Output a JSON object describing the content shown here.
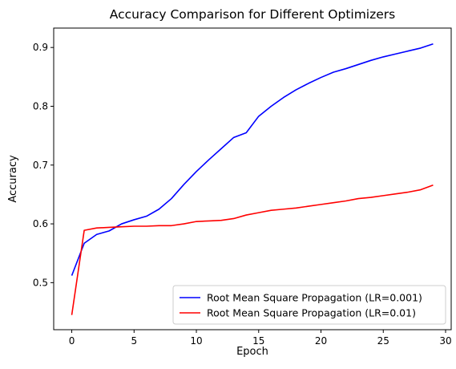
{
  "chart_data": {
    "type": "line",
    "title": "Accuracy Comparison for Different Optimizers",
    "xlabel": "Epoch",
    "ylabel": "Accuracy",
    "xlim": [
      -1.45,
      30.45
    ],
    "ylim": [
      0.42,
      0.933
    ],
    "xticks": [
      0,
      5,
      10,
      15,
      20,
      25,
      30
    ],
    "yticks": [
      0.5,
      0.6,
      0.7,
      0.8,
      0.9
    ],
    "xtick_labels": [
      "0",
      "5",
      "10",
      "15",
      "20",
      "25",
      "30"
    ],
    "ytick_labels": [
      "0.5",
      "0.6",
      "0.7",
      "0.8",
      "0.9"
    ],
    "grid": false,
    "legend_position": "lower right",
    "x": [
      0,
      1,
      2,
      3,
      4,
      5,
      6,
      7,
      8,
      9,
      10,
      11,
      12,
      13,
      14,
      15,
      16,
      17,
      18,
      19,
      20,
      21,
      22,
      23,
      24,
      25,
      26,
      27,
      28,
      29
    ],
    "series": [
      {
        "name": "Root Mean Square Propagation (LR=0.001)",
        "color": "#0000ff",
        "values": [
          0.512,
          0.567,
          0.582,
          0.588,
          0.6,
          0.607,
          0.613,
          0.625,
          0.643,
          0.667,
          0.689,
          0.709,
          0.728,
          0.747,
          0.755,
          0.783,
          0.8,
          0.815,
          0.828,
          0.839,
          0.849,
          0.858,
          0.864,
          0.871,
          0.878,
          0.884,
          0.889,
          0.894,
          0.899,
          0.906
        ]
      },
      {
        "name": "Root Mean Square Propagation (LR=0.01)",
        "color": "#ff0000",
        "values": [
          0.445,
          0.589,
          0.593,
          0.594,
          0.595,
          0.596,
          0.596,
          0.597,
          0.597,
          0.6,
          0.604,
          0.605,
          0.606,
          0.609,
          0.615,
          0.619,
          0.623,
          0.625,
          0.627,
          0.63,
          0.633,
          0.636,
          0.639,
          0.643,
          0.645,
          0.648,
          0.651,
          0.654,
          0.658,
          0.666
        ]
      }
    ]
  }
}
